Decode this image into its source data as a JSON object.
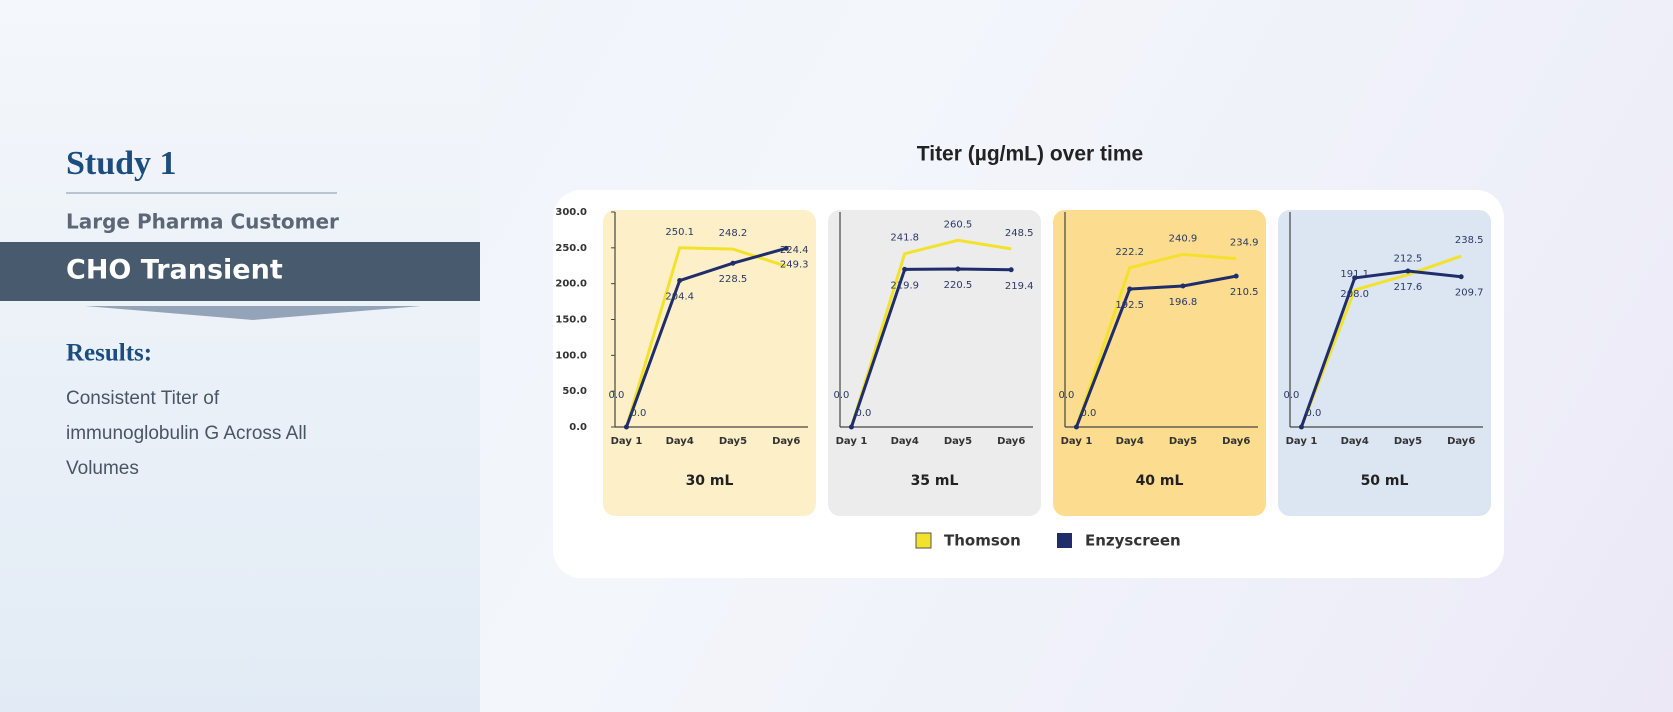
{
  "sidebar": {
    "heading": "Study 1",
    "customer": "Large Pharma Customer",
    "banner": "CHO Transient",
    "results_heading": "Results:",
    "results_lines": [
      "Consistent Titer of",
      "immunoglobulin G Across All",
      "Volumes"
    ]
  },
  "figure": {
    "title": "Titer (µg/mL) over time"
  },
  "chart_data": [
    {
      "type": "line",
      "title": "30 mL",
      "background": "#fdf0c8",
      "categories": [
        "Day 1",
        "Day4",
        "Day5",
        "Day6"
      ],
      "ylim": [
        0,
        300
      ],
      "yticks": [
        {
          "value": 0,
          "label": "0.0"
        },
        {
          "value": 50,
          "label": "50.0"
        },
        {
          "value": 100,
          "label": "100.0"
        },
        {
          "value": 150,
          "label": "150.0"
        },
        {
          "value": 200,
          "label": "200.0"
        },
        {
          "value": 250,
          "label": "250.0"
        },
        {
          "value": 300,
          "label": "300.0"
        }
      ],
      "series": [
        {
          "name": "Thomson",
          "color": "#f2e22c",
          "values": [
            0,
            250.1,
            248.2,
            224.4
          ],
          "value_labels": [
            "0.0",
            "250.1",
            "248.2",
            "224.4"
          ]
        },
        {
          "name": "Enzyscreen",
          "color": "#1f2d6b",
          "values": [
            0,
            204.4,
            228.5,
            249.3
          ],
          "value_labels": [
            "0.0",
            "204.4",
            "228.5",
            "249.3"
          ]
        }
      ]
    },
    {
      "type": "line",
      "title": "35 mL",
      "background": "#ececec",
      "categories": [
        "Day 1",
        "Day4",
        "Day5",
        "Day6"
      ],
      "ylim": [
        0,
        300
      ],
      "series": [
        {
          "name": "Thomson",
          "color": "#f2e22c",
          "values": [
            0,
            241.8,
            260.5,
            248.5
          ],
          "value_labels": [
            "0.0",
            "241.8",
            "260.5",
            "248.5"
          ]
        },
        {
          "name": "Enzyscreen",
          "color": "#1f2d6b",
          "values": [
            0,
            219.9,
            220.5,
            219.4
          ],
          "value_labels": [
            "0.0",
            "219.9",
            "220.5",
            "219.4"
          ]
        }
      ]
    },
    {
      "type": "line",
      "title": "40 mL",
      "background": "#fcdc8e",
      "categories": [
        "Day 1",
        "Day4",
        "Day5",
        "Day6"
      ],
      "ylim": [
        0,
        300
      ],
      "series": [
        {
          "name": "Thomson",
          "color": "#f2e22c",
          "values": [
            0,
            222.2,
            240.9,
            234.9
          ],
          "value_labels": [
            "0.0",
            "222.2",
            "240.9",
            "234.9"
          ]
        },
        {
          "name": "Enzyscreen",
          "color": "#1f2d6b",
          "values": [
            0,
            192.5,
            196.8,
            210.5
          ],
          "value_labels": [
            "0.0",
            "192.5",
            "196.8",
            "210.5"
          ]
        }
      ]
    },
    {
      "type": "line",
      "title": "50 mL",
      "background": "#dce6f2",
      "categories": [
        "Day 1",
        "Day4",
        "Day5",
        "Day6"
      ],
      "ylim": [
        0,
        300
      ],
      "series": [
        {
          "name": "Thomson",
          "color": "#f2e22c",
          "values": [
            0,
            191.1,
            212.5,
            238.5
          ],
          "value_labels": [
            "0.0",
            "191.1",
            "212.5",
            "238.5"
          ]
        },
        {
          "name": "Enzyscreen",
          "color": "#1f2d6b",
          "values": [
            0,
            208.0,
            217.6,
            209.7
          ],
          "value_labels": [
            "0.0",
            "208.0",
            "217.6",
            "209.7"
          ]
        }
      ]
    }
  ]
}
